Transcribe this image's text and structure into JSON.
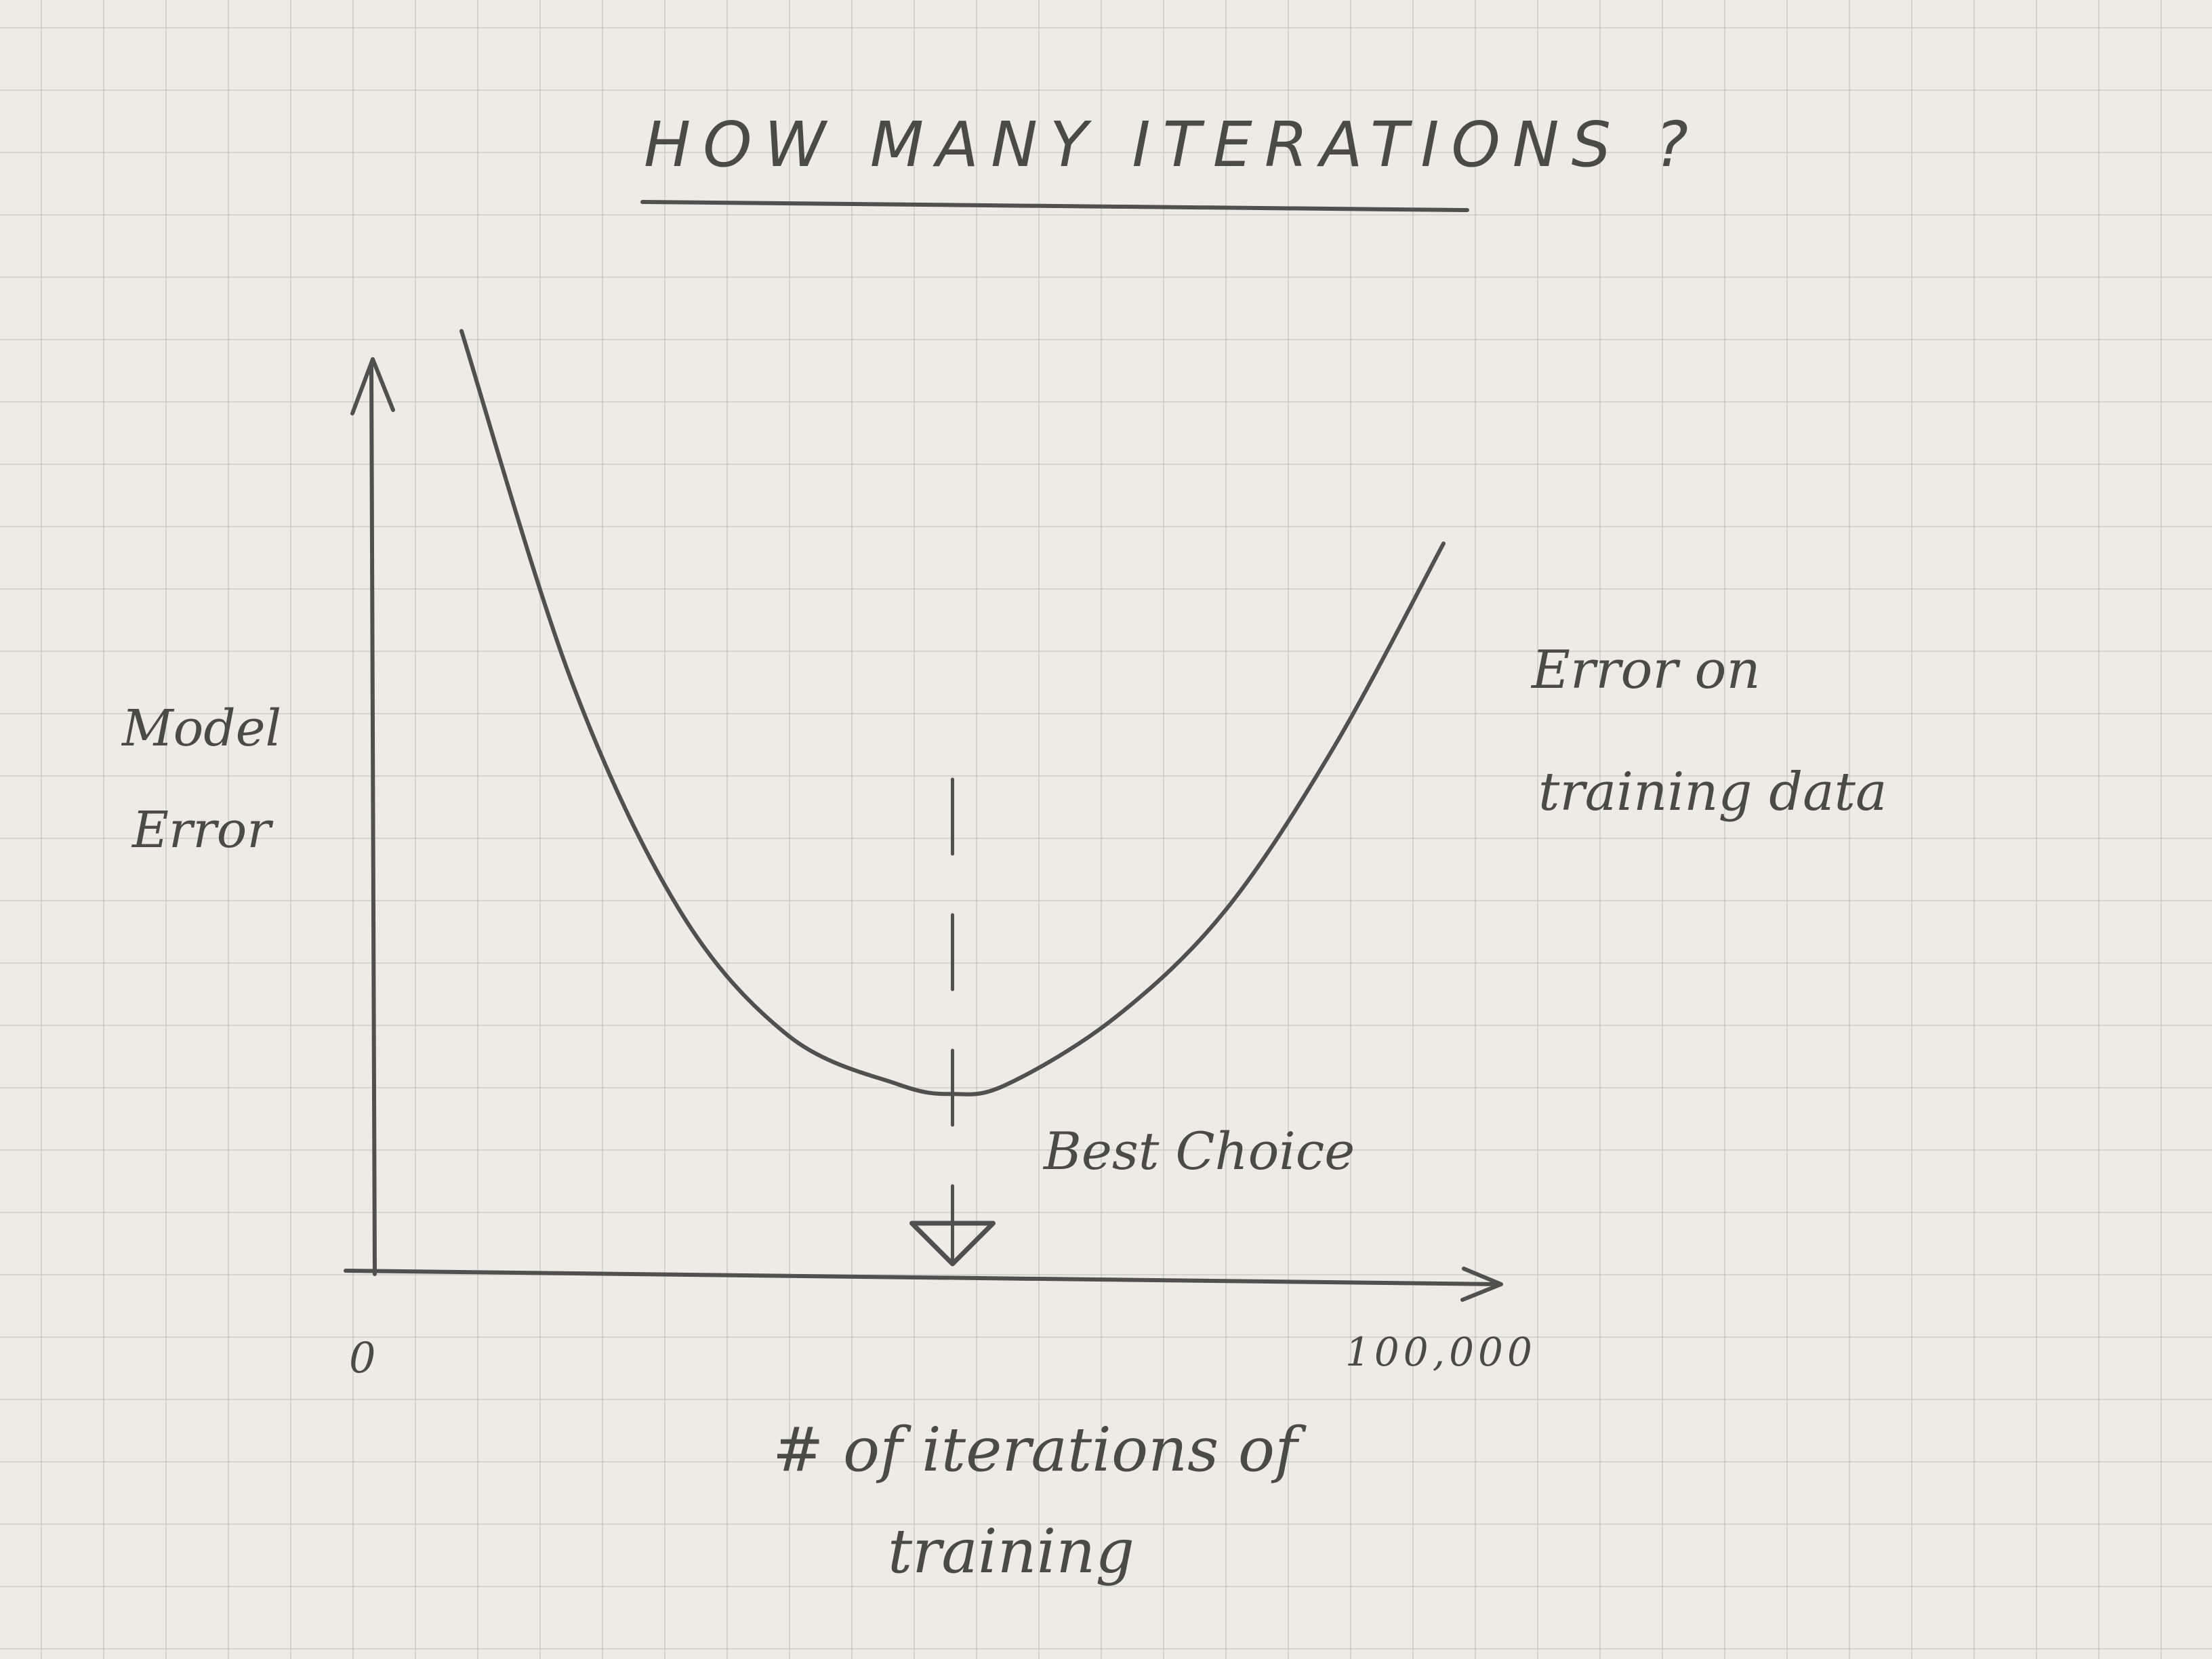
{
  "chart_data": {
    "type": "line",
    "title": "HOW MANY ITERATIONS ?",
    "xlabel": "# of iterations of training",
    "ylabel": "Model Error",
    "x_ticks": [
      "0",
      "100,000"
    ],
    "xlim": [
      0,
      100000
    ],
    "ylim": [
      0,
      1
    ],
    "grid": true,
    "series": [
      {
        "name": "Error on training data",
        "x": [
          10000,
          20000,
          30000,
          40000,
          50000,
          55000,
          60000,
          70000,
          80000,
          90000,
          100000
        ],
        "y": [
          0.98,
          0.62,
          0.38,
          0.25,
          0.2,
          0.19,
          0.2,
          0.27,
          0.38,
          0.55,
          0.76
        ]
      }
    ],
    "annotations": [
      {
        "text": "Best Choice",
        "x": 55000
      }
    ]
  }
}
